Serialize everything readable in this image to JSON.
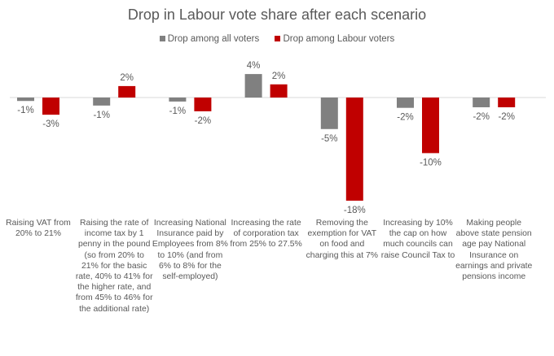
{
  "chart_data": {
    "type": "bar",
    "title": "Drop in Labour vote share after each scenario",
    "legend_position": "top",
    "grid": false,
    "ylim": [
      -19,
      5
    ],
    "categories": [
      "Raising VAT from 20% to 21%",
      "Raising the rate of income tax by 1 penny in the pound (so from 20% to 21% for the basic rate, 40% to 41% for the higher rate, and from 45% to 46% for the additional rate)",
      "Increasing National Insurance paid by Employees from 8% to 10% (and from 6% to 8% for the self-employed)",
      "Increasing the rate of corporation tax from 25% to 27.5%",
      "Removing the exemption for VAT on food and charging this at 7%",
      "Increasing by 10% the cap on how much councils can raise Council Tax to",
      "Making people above state pension age pay National Insurance on earnings and private pensions income"
    ],
    "series": [
      {
        "name": "Drop among all voters",
        "color": "#808080",
        "values": [
          -0.6,
          -1.4,
          -0.7,
          4.1,
          -5.5,
          -1.8,
          -1.7
        ],
        "labels": [
          "-1%",
          "-1%",
          "-1%",
          "4%",
          "-5%",
          "-2%",
          "-2%"
        ]
      },
      {
        "name": "Drop among Labour voters",
        "color": "#C00000",
        "values": [
          -3.0,
          2.0,
          -2.4,
          2.3,
          -18.0,
          -9.7,
          -1.7
        ],
        "labels": [
          "-3%",
          "2%",
          "-2%",
          "2%",
          "-18%",
          "-10%",
          "-2%"
        ]
      }
    ]
  }
}
